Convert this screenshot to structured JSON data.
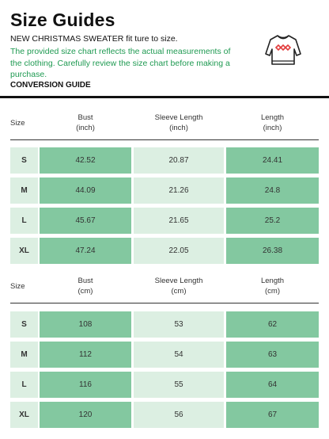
{
  "header": {
    "title": "Size Guides",
    "subtitle": "NEW CHRISTMAS SWEATER fit ture to size.",
    "note": "The provided size chart reflects the actual measurements of the clothing. Carefully review the size chart before making a purchase.",
    "conversion_label": "CONVERSION GUIDE",
    "icon": "sweater-icon",
    "colors": {
      "accent_text": "#1f9a52",
      "dark_cell": "#83c8a0",
      "light_cell": "#dcefe2"
    }
  },
  "inch_table": {
    "columns": [
      "Size",
      "Bust\n(inch)",
      "Sleeve Length\n(inch)",
      "Length\n(inch)"
    ],
    "rows": [
      [
        "S",
        "42.52",
        "20.87",
        "24.41"
      ],
      [
        "M",
        "44.09",
        "21.26",
        "24.8"
      ],
      [
        "L",
        "45.67",
        "21.65",
        "25.2"
      ],
      [
        "XL",
        "47.24",
        "22.05",
        "26.38"
      ]
    ]
  },
  "cm_table": {
    "columns": [
      "Size",
      "Bust\n(cm)",
      "Sleeve Length\n(cm)",
      "Length\n(cm)"
    ],
    "rows": [
      [
        "S",
        "108",
        "53",
        "62"
      ],
      [
        "M",
        "112",
        "54",
        "63"
      ],
      [
        "L",
        "116",
        "55",
        "64"
      ],
      [
        "XL",
        "120",
        "56",
        "67"
      ]
    ]
  }
}
